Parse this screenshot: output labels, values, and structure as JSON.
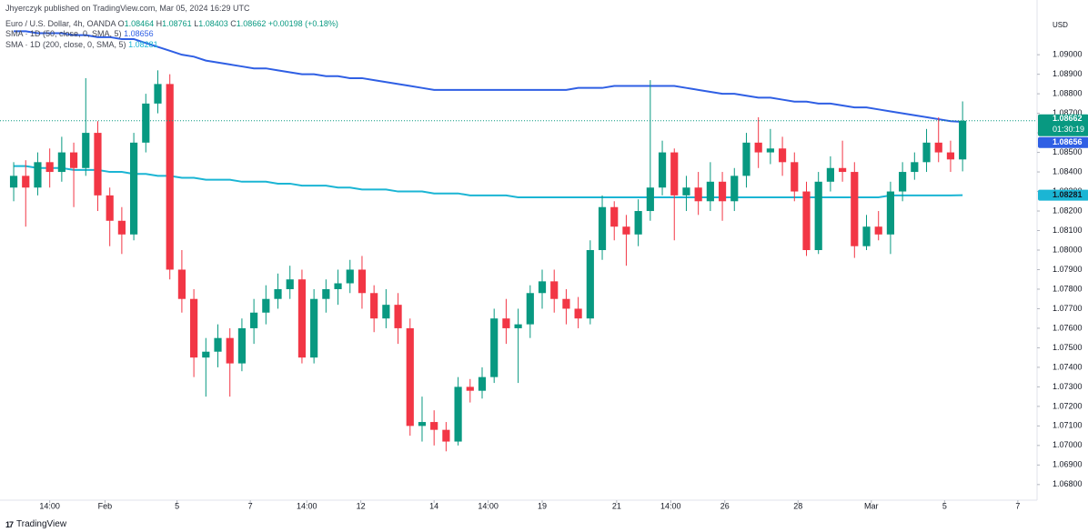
{
  "header": {
    "published": "Jhyerczyk published on TradingView.com, Mar 05, 2024 16:29 UTC"
  },
  "chart_data": {
    "type": "candlestick",
    "title": "Euro / U.S. Dollar, 4h, OANDA",
    "ohlc_prefixes": [
      "O",
      "H",
      "L",
      "C"
    ],
    "change": "+0.00198 (+0.18%)",
    "currency": "USD",
    "countdown": "01:30:19",
    "up_color": "#089981",
    "down_color": "#f23645",
    "open": [
      1.0832,
      1.0838,
      1.0832,
      1.0845,
      1.084,
      1.085,
      1.0842,
      1.086,
      1.0828,
      1.0815,
      1.0808,
      1.0855,
      1.0875,
      1.0885,
      1.079,
      1.0775,
      1.0745,
      1.0748,
      1.0755,
      1.0742,
      1.076,
      1.0768,
      1.0775,
      1.078,
      1.0785,
      1.0745,
      1.0775,
      1.078,
      1.0783,
      1.079,
      1.0778,
      1.0765,
      1.0772,
      1.076,
      1.071,
      1.0712,
      1.0708,
      1.0702,
      1.073,
      1.0728,
      1.0735,
      1.0765,
      1.076,
      1.0762,
      1.0778,
      1.0784,
      1.0775,
      1.077,
      1.0765,
      1.08,
      1.0822,
      1.0812,
      1.0808,
      1.082,
      1.0832,
      1.085,
      1.0828,
      1.0832,
      1.0825,
      1.0835,
      1.0825,
      1.0838,
      1.0855,
      1.085,
      1.0852,
      1.0845,
      1.083,
      1.08,
      1.0835,
      1.0842,
      1.084,
      1.0802,
      1.0812,
      1.0808,
      1.083,
      1.084,
      1.0845,
      1.0855,
      1.085,
      1.08464
    ],
    "high": [
      1.0845,
      1.0846,
      1.085,
      1.0852,
      1.0858,
      1.0855,
      1.0888,
      1.0866,
      1.0832,
      1.0822,
      1.086,
      1.088,
      1.0892,
      1.089,
      1.08,
      1.078,
      1.0755,
      1.0762,
      1.076,
      1.0765,
      1.0775,
      1.0782,
      1.0788,
      1.0792,
      1.079,
      1.078,
      1.0785,
      1.079,
      1.0795,
      1.0797,
      1.0782,
      1.078,
      1.0778,
      1.0765,
      1.0725,
      1.0718,
      1.0712,
      1.0735,
      1.0734,
      1.074,
      1.077,
      1.0775,
      1.077,
      1.0782,
      1.079,
      1.079,
      1.078,
      1.0776,
      1.0805,
      1.0828,
      1.0825,
      1.0818,
      1.0826,
      1.0887,
      1.0856,
      1.0852,
      1.0838,
      1.084,
      1.0845,
      1.084,
      1.0842,
      1.086,
      1.0868,
      1.0862,
      1.0858,
      1.085,
      1.0835,
      1.084,
      1.0848,
      1.0856,
      1.0845,
      1.0818,
      1.082,
      1.0835,
      1.0845,
      1.085,
      1.0862,
      1.0868,
      1.0856,
      1.08761
    ],
    "low": [
      1.0825,
      1.0812,
      1.0828,
      1.0832,
      1.0835,
      1.0822,
      1.0838,
      1.082,
      1.0802,
      1.0798,
      1.0805,
      1.085,
      1.087,
      1.0785,
      1.0768,
      1.0735,
      1.0725,
      1.074,
      1.0725,
      1.0738,
      1.0752,
      1.0762,
      1.077,
      1.0775,
      1.0742,
      1.0742,
      1.0768,
      1.0772,
      1.0778,
      1.077,
      1.0758,
      1.076,
      1.0752,
      1.0705,
      1.0702,
      1.07,
      1.0697,
      1.07,
      1.0722,
      1.0724,
      1.0732,
      1.0752,
      1.0732,
      1.0755,
      1.077,
      1.0768,
      1.0762,
      1.076,
      1.0762,
      1.0795,
      1.0805,
      1.0792,
      1.0802,
      1.0815,
      1.0828,
      1.0805,
      1.082,
      1.0818,
      1.082,
      1.0815,
      1.082,
      1.0832,
      1.0842,
      1.0844,
      1.0838,
      1.0825,
      1.0797,
      1.0798,
      1.083,
      1.0835,
      1.0796,
      1.08,
      1.0805,
      1.0798,
      1.0825,
      1.0836,
      1.084,
      1.0845,
      1.084,
      1.08403
    ],
    "close": [
      1.0838,
      1.0832,
      1.0845,
      1.084,
      1.085,
      1.0842,
      1.086,
      1.0828,
      1.0815,
      1.0808,
      1.0855,
      1.0875,
      1.0885,
      1.079,
      1.0775,
      1.0745,
      1.0748,
      1.0755,
      1.0742,
      1.076,
      1.0768,
      1.0775,
      1.078,
      1.0785,
      1.0745,
      1.0775,
      1.078,
      1.0783,
      1.079,
      1.0778,
      1.0765,
      1.0772,
      1.076,
      1.071,
      1.0712,
      1.0708,
      1.0702,
      1.073,
      1.0728,
      1.0735,
      1.0765,
      1.076,
      1.0762,
      1.0778,
      1.0784,
      1.0775,
      1.077,
      1.0765,
      1.08,
      1.0822,
      1.0812,
      1.0808,
      1.082,
      1.0832,
      1.085,
      1.0828,
      1.0832,
      1.0825,
      1.0835,
      1.0825,
      1.0838,
      1.0855,
      1.085,
      1.0852,
      1.0845,
      1.083,
      1.08,
      1.0835,
      1.0842,
      1.084,
      1.0802,
      1.0812,
      1.0808,
      1.083,
      1.084,
      1.0845,
      1.0855,
      1.085,
      1.08464,
      1.08662
    ],
    "series": [
      {
        "name": "SMA · 1D (50, close, 0, SMA, 5)",
        "color": "#2f5fe4",
        "values": [
          1.0912,
          1.0912,
          1.0911,
          1.0911,
          1.0911,
          1.091,
          1.091,
          1.0909,
          1.0909,
          1.0908,
          1.0908,
          1.0906,
          1.0904,
          1.0902,
          1.09,
          1.0899,
          1.0897,
          1.0896,
          1.0895,
          1.0894,
          1.0893,
          1.0893,
          1.0892,
          1.0891,
          1.089,
          1.089,
          1.0889,
          1.0889,
          1.0888,
          1.0888,
          1.0887,
          1.0886,
          1.0885,
          1.0884,
          1.0883,
          1.0882,
          1.0882,
          1.0882,
          1.0882,
          1.0882,
          1.0882,
          1.0882,
          1.0882,
          1.0882,
          1.0882,
          1.0882,
          1.0882,
          1.0883,
          1.0883,
          1.0883,
          1.0884,
          1.0884,
          1.0884,
          1.0884,
          1.0884,
          1.0884,
          1.0883,
          1.0882,
          1.0881,
          1.088,
          1.088,
          1.0879,
          1.0878,
          1.0878,
          1.0877,
          1.0876,
          1.0876,
          1.0875,
          1.0875,
          1.0874,
          1.0873,
          1.0873,
          1.0872,
          1.0871,
          1.087,
          1.0869,
          1.0868,
          1.0867,
          1.0866,
          1.08656
        ]
      },
      {
        "name": "SMA · 1D (200, close, 0, SMA, 5)",
        "color": "#1bb5d4",
        "values": [
          1.0843,
          1.0843,
          1.0842,
          1.0842,
          1.0842,
          1.0841,
          1.0841,
          1.0841,
          1.084,
          1.084,
          1.0839,
          1.0839,
          1.0838,
          1.0838,
          1.0837,
          1.0837,
          1.0836,
          1.0836,
          1.0836,
          1.0835,
          1.0835,
          1.0835,
          1.0834,
          1.0834,
          1.0833,
          1.0833,
          1.0833,
          1.0832,
          1.0832,
          1.0831,
          1.0831,
          1.0831,
          1.083,
          1.083,
          1.083,
          1.0829,
          1.0829,
          1.0829,
          1.0828,
          1.0828,
          1.0828,
          1.0828,
          1.0827,
          1.0827,
          1.0827,
          1.0827,
          1.0827,
          1.0827,
          1.0827,
          1.0827,
          1.0827,
          1.0827,
          1.0827,
          1.0827,
          1.0827,
          1.0827,
          1.0827,
          1.0827,
          1.0827,
          1.0827,
          1.0827,
          1.0827,
          1.0827,
          1.0827,
          1.0827,
          1.0827,
          1.0827,
          1.0827,
          1.0827,
          1.0827,
          1.0827,
          1.0827,
          1.0827,
          1.0828,
          1.0828,
          1.0828,
          1.0828,
          1.0828,
          1.0828,
          1.08281
        ]
      }
    ],
    "xlim": [
      -1.14,
      85.2
    ],
    "ylim": [
      1.0672,
      1.0928
    ],
    "xticks": [
      {
        "value": 3,
        "label": "14:00"
      },
      {
        "value": 7.6,
        "label": "Feb"
      },
      {
        "value": 13.6,
        "label": "5"
      },
      {
        "value": 19.7,
        "label": "7"
      },
      {
        "value": 24.4,
        "label": "14:00"
      },
      {
        "value": 28.9,
        "label": "12"
      },
      {
        "value": 35,
        "label": "14"
      },
      {
        "value": 39.5,
        "label": "14:00"
      },
      {
        "value": 44,
        "label": "19"
      },
      {
        "value": 50.2,
        "label": "21"
      },
      {
        "value": 54.7,
        "label": "14:00"
      },
      {
        "value": 59.2,
        "label": "26"
      },
      {
        "value": 65.3,
        "label": "28"
      },
      {
        "value": 71.4,
        "label": "Mar"
      },
      {
        "value": 77.5,
        "label": "5"
      },
      {
        "value": 83.6,
        "label": "7"
      }
    ],
    "yticks": [
      {
        "value": 1.068,
        "label": "1.06800"
      },
      {
        "value": 1.069,
        "label": "1.06900"
      },
      {
        "value": 1.07,
        "label": "1.07000"
      },
      {
        "value": 1.071,
        "label": "1.07100"
      },
      {
        "value": 1.072,
        "label": "1.07200"
      },
      {
        "value": 1.073,
        "label": "1.07300"
      },
      {
        "value": 1.074,
        "label": "1.07400"
      },
      {
        "value": 1.075,
        "label": "1.07500"
      },
      {
        "value": 1.076,
        "label": "1.07600"
      },
      {
        "value": 1.077,
        "label": "1.07700"
      },
      {
        "value": 1.078,
        "label": "1.07800"
      },
      {
        "value": 1.079,
        "label": "1.07900"
      },
      {
        "value": 1.08,
        "label": "1.08000"
      },
      {
        "value": 1.081,
        "label": "1.08100"
      },
      {
        "value": 1.082,
        "label": "1.08200"
      },
      {
        "value": 1.083,
        "label": "1.08300"
      },
      {
        "value": 1.084,
        "label": "1.08400"
      },
      {
        "value": 1.085,
        "label": "1.08500"
      },
      {
        "value": 1.086,
        "label": "1.08600"
      },
      {
        "value": 1.087,
        "label": "1.08700"
      },
      {
        "value": 1.088,
        "label": "1.08800"
      },
      {
        "value": 1.089,
        "label": "1.08900"
      },
      {
        "value": 1.09,
        "label": "1.09000"
      }
    ]
  },
  "footer": {
    "brand": "TradingView"
  }
}
